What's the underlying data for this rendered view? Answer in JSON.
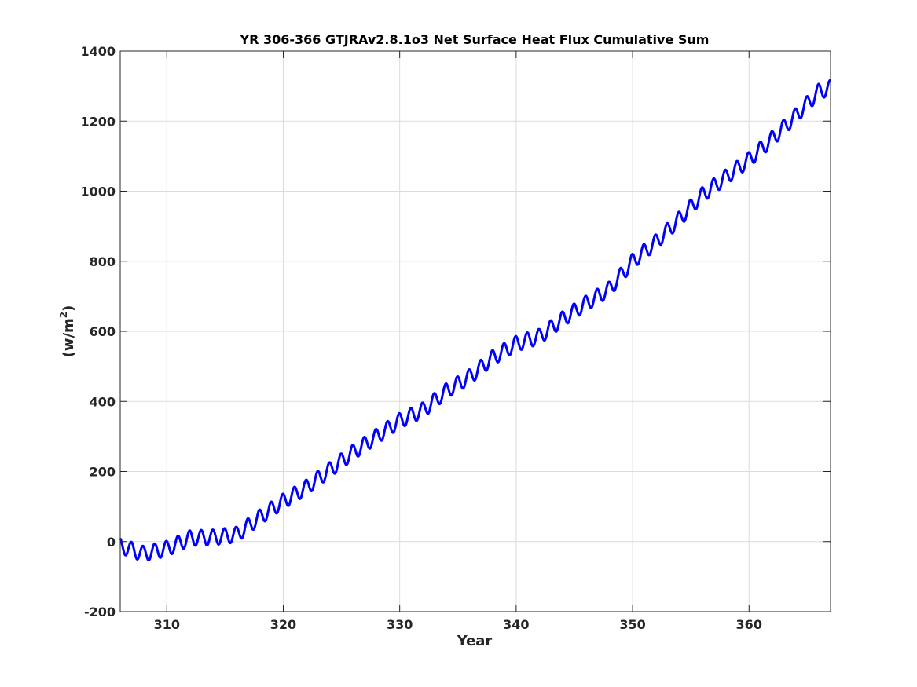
{
  "chart_data": {
    "type": "line",
    "title": "YR 306-366 GTJRAv2.8.1o3 Net Surface Heat Flux  Cumulative Sum",
    "xlabel": "Year",
    "ylabel_parts": {
      "prefix": "(w/m",
      "sup": "2",
      "suffix": ")"
    },
    "xlim": [
      306,
      367
    ],
    "ylim": [
      -200,
      1400
    ],
    "xticks": [
      310,
      320,
      330,
      340,
      350,
      360
    ],
    "yticks": [
      -200,
      0,
      200,
      400,
      600,
      800,
      1000,
      1200,
      1400
    ],
    "grid": true,
    "line_color": "#0000ff",
    "series": [
      {
        "seasonal_amplitude": 22,
        "cycles_per_year": 1,
        "trend_x": [
          306,
          308,
          310,
          312,
          314,
          316,
          318,
          320,
          322,
          324,
          326,
          328,
          330,
          332,
          334,
          336,
          338,
          340,
          342,
          344,
          346,
          348,
          350,
          352,
          354,
          356,
          358,
          360,
          362,
          364,
          366,
          367
        ],
        "trend_y": [
          -12,
          -35,
          -20,
          10,
          12,
          20,
          70,
          115,
          155,
          205,
          255,
          300,
          345,
          375,
          430,
          470,
          525,
          565,
          585,
          635,
          680,
          720,
          800,
          855,
          920,
          990,
          1040,
          1090,
          1150,
          1215,
          1285,
          1295
        ]
      }
    ]
  }
}
